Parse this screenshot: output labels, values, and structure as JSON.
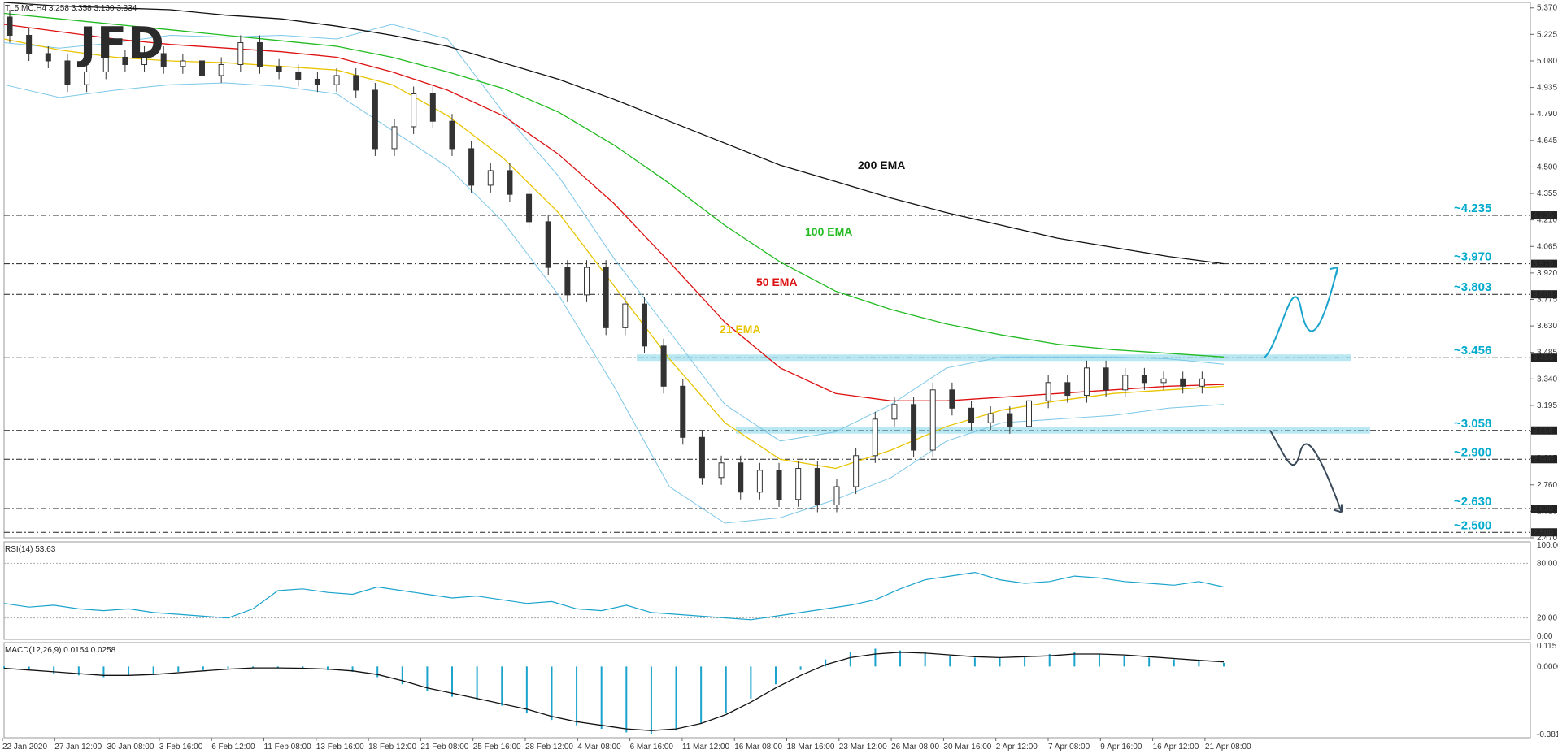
{
  "header": {
    "symbol": "TL5.MC,H4",
    "ohlc": "3.258 3.358 3.130 3.334",
    "logo": "JFD"
  },
  "chart_data": {
    "type": "line",
    "price_ticks": [
      "5.370",
      "5.225",
      "5.080",
      "4.935",
      "4.790",
      "4.645",
      "4.500",
      "4.355",
      "4.210",
      "4.065",
      "3.920",
      "3.775",
      "3.630",
      "3.485",
      "3.340",
      "3.195",
      "3.050",
      "2.905",
      "2.760",
      "2.615",
      "2.470"
    ],
    "price_range": [
      2.47,
      5.4
    ],
    "levels": [
      {
        "value": 4.235,
        "label": "~4.235",
        "tag": "4.235"
      },
      {
        "value": 3.97,
        "label": "~3.970",
        "tag": "3.970"
      },
      {
        "value": 3.803,
        "label": "~3.803",
        "tag": "3.803"
      },
      {
        "value": 3.456,
        "label": "~3.456",
        "tag": "3.456"
      },
      {
        "value": 3.058,
        "label": "~3.058",
        "tag": "3.058"
      },
      {
        "value": 2.9,
        "label": "~2.900",
        "tag": "2.900"
      },
      {
        "value": 2.63,
        "label": "~2.630",
        "tag": "2.630"
      },
      {
        "value": 2.5,
        "label": "~2.500",
        "tag": "2.500"
      }
    ],
    "ema_labels": [
      {
        "text": "200 EMA",
        "color": "#111111"
      },
      {
        "text": "100 EMA",
        "color": "#22bb22"
      },
      {
        "text": "50 EMA",
        "color": "#dd1111"
      },
      {
        "text": "21 EMA",
        "color": "#e8c400"
      }
    ],
    "ema200": [
      5.4,
      5.38,
      5.37,
      5.36,
      5.33,
      5.31,
      5.27,
      5.22,
      5.16,
      5.07,
      4.98,
      4.87,
      4.75,
      4.63,
      4.51,
      4.42,
      4.33,
      4.25,
      4.18,
      4.11,
      4.06,
      4.01,
      3.97
    ],
    "ema100": [
      5.34,
      5.31,
      5.28,
      5.25,
      5.22,
      5.19,
      5.16,
      5.1,
      5.02,
      4.93,
      4.8,
      4.62,
      4.41,
      4.18,
      3.98,
      3.82,
      3.72,
      3.64,
      3.58,
      3.53,
      3.5,
      3.48,
      3.46
    ],
    "ema50": [
      5.28,
      5.24,
      5.2,
      5.17,
      5.15,
      5.13,
      5.1,
      5.02,
      4.92,
      4.78,
      4.57,
      4.3,
      3.98,
      3.65,
      3.4,
      3.26,
      3.22,
      3.22,
      3.24,
      3.26,
      3.28,
      3.3,
      3.31
    ],
    "ema21": [
      5.2,
      5.14,
      5.1,
      5.08,
      5.07,
      5.05,
      5.03,
      4.95,
      4.78,
      4.55,
      4.25,
      3.85,
      3.45,
      3.1,
      2.9,
      2.85,
      2.95,
      3.08,
      3.17,
      3.22,
      3.26,
      3.28,
      3.3
    ],
    "bb_upper": [
      5.18,
      5.15,
      5.18,
      5.22,
      5.21,
      5.22,
      5.2,
      5.28,
      5.2,
      4.8,
      4.45,
      4.0,
      3.6,
      3.2,
      3.0,
      3.05,
      3.2,
      3.4,
      3.46,
      3.46,
      3.46,
      3.45,
      3.42
    ],
    "bb_lower": [
      4.95,
      4.88,
      4.92,
      4.95,
      4.96,
      4.94,
      4.9,
      4.7,
      4.5,
      4.2,
      3.8,
      3.3,
      2.75,
      2.55,
      2.58,
      2.68,
      2.8,
      3.0,
      3.1,
      3.12,
      3.14,
      3.18,
      3.2
    ],
    "candles": [
      {
        "o": 5.32,
        "c": 5.22
      },
      {
        "o": 5.22,
        "c": 5.12
      },
      {
        "o": 5.12,
        "c": 5.08
      },
      {
        "o": 5.08,
        "c": 4.95
      },
      {
        "o": 4.95,
        "c": 5.02
      },
      {
        "o": 5.02,
        "c": 5.1
      },
      {
        "o": 5.1,
        "c": 5.06
      },
      {
        "o": 5.06,
        "c": 5.12
      },
      {
        "o": 5.12,
        "c": 5.05
      },
      {
        "o": 5.05,
        "c": 5.08
      },
      {
        "o": 5.08,
        "c": 5.0
      },
      {
        "o": 5.0,
        "c": 5.06
      },
      {
        "o": 5.06,
        "c": 5.18
      },
      {
        "o": 5.18,
        "c": 5.05
      },
      {
        "o": 5.05,
        "c": 5.02
      },
      {
        "o": 5.02,
        "c": 4.98
      },
      {
        "o": 4.98,
        "c": 4.95
      },
      {
        "o": 4.95,
        "c": 5.0
      },
      {
        "o": 5.0,
        "c": 4.92
      },
      {
        "o": 4.92,
        "c": 4.6
      },
      {
        "o": 4.6,
        "c": 4.72
      },
      {
        "o": 4.72,
        "c": 4.9
      },
      {
        "o": 4.9,
        "c": 4.75
      },
      {
        "o": 4.75,
        "c": 4.6
      },
      {
        "o": 4.6,
        "c": 4.4
      },
      {
        "o": 4.4,
        "c": 4.48
      },
      {
        "o": 4.48,
        "c": 4.35
      },
      {
        "o": 4.35,
        "c": 4.2
      },
      {
        "o": 4.2,
        "c": 3.95
      },
      {
        "o": 3.95,
        "c": 3.8
      },
      {
        "o": 3.8,
        "c": 3.95
      },
      {
        "o": 3.95,
        "c": 3.62
      },
      {
        "o": 3.62,
        "c": 3.75
      },
      {
        "o": 3.75,
        "c": 3.52
      },
      {
        "o": 3.52,
        "c": 3.3
      },
      {
        "o": 3.3,
        "c": 3.02
      },
      {
        "o": 3.02,
        "c": 2.8
      },
      {
        "o": 2.8,
        "c": 2.88
      },
      {
        "o": 2.88,
        "c": 2.72
      },
      {
        "o": 2.72,
        "c": 2.84
      },
      {
        "o": 2.84,
        "c": 2.68
      },
      {
        "o": 2.68,
        "c": 2.85
      },
      {
        "o": 2.85,
        "c": 2.65
      },
      {
        "o": 2.65,
        "c": 2.75
      },
      {
        "o": 2.75,
        "c": 2.92
      },
      {
        "o": 2.92,
        "c": 3.12
      },
      {
        "o": 3.12,
        "c": 3.2
      },
      {
        "o": 3.2,
        "c": 2.95
      },
      {
        "o": 2.95,
        "c": 3.28
      },
      {
        "o": 3.28,
        "c": 3.18
      },
      {
        "o": 3.18,
        "c": 3.1
      },
      {
        "o": 3.1,
        "c": 3.15
      },
      {
        "o": 3.15,
        "c": 3.08
      },
      {
        "o": 3.08,
        "c": 3.22
      },
      {
        "o": 3.22,
        "c": 3.32
      },
      {
        "o": 3.32,
        "c": 3.25
      },
      {
        "o": 3.25,
        "c": 3.4
      },
      {
        "o": 3.4,
        "c": 3.28
      },
      {
        "o": 3.28,
        "c": 3.36
      },
      {
        "o": 3.36,
        "c": 3.32
      },
      {
        "o": 3.32,
        "c": 3.34
      },
      {
        "o": 3.34,
        "c": 3.3
      },
      {
        "o": 3.3,
        "c": 3.34
      }
    ],
    "rsi": {
      "label": "RSI(14) 53.63",
      "ticks": [
        "100.00",
        "80.00",
        "20.00",
        "0.00"
      ],
      "levels": [
        80,
        20
      ],
      "values": [
        36,
        32,
        34,
        30,
        28,
        30,
        26,
        24,
        22,
        20,
        30,
        50,
        52,
        48,
        46,
        54,
        50,
        46,
        42,
        44,
        40,
        36,
        38,
        30,
        28,
        34,
        26,
        24,
        22,
        20,
        18,
        22,
        26,
        30,
        34,
        40,
        52,
        62,
        66,
        70,
        62,
        58,
        60,
        66,
        64,
        60,
        58,
        56,
        60,
        54
      ]
    },
    "macd": {
      "label": "MACD(12,26,9) 0.0154 0.0258",
      "ticks": [
        "0.1157",
        "0.0000",
        "-0.3817"
      ],
      "range": [
        -0.3817,
        0.1157
      ],
      "hist": [
        -0.01,
        -0.02,
        -0.04,
        -0.05,
        -0.06,
        -0.05,
        -0.04,
        -0.03,
        -0.02,
        -0.01,
        -0.005,
        -0.01,
        -0.01,
        -0.02,
        -0.03,
        -0.06,
        -0.1,
        -0.14,
        -0.17,
        -0.19,
        -0.22,
        -0.26,
        -0.3,
        -0.33,
        -0.35,
        -0.37,
        -0.38,
        -0.36,
        -0.32,
        -0.26,
        -0.18,
        -0.1,
        -0.02,
        0.04,
        0.08,
        0.1,
        0.09,
        0.08,
        0.06,
        0.05,
        0.05,
        0.06,
        0.07,
        0.08,
        0.07,
        0.06,
        0.05,
        0.04,
        0.03,
        0.02
      ],
      "signal": [
        -0.01,
        -0.02,
        -0.03,
        -0.04,
        -0.05,
        -0.05,
        -0.045,
        -0.035,
        -0.025,
        -0.015,
        -0.008,
        -0.008,
        -0.01,
        -0.015,
        -0.025,
        -0.045,
        -0.08,
        -0.12,
        -0.15,
        -0.18,
        -0.21,
        -0.24,
        -0.28,
        -0.31,
        -0.33,
        -0.35,
        -0.36,
        -0.35,
        -0.32,
        -0.27,
        -0.2,
        -0.12,
        -0.05,
        0.01,
        0.05,
        0.07,
        0.08,
        0.075,
        0.065,
        0.055,
        0.05,
        0.055,
        0.06,
        0.07,
        0.07,
        0.065,
        0.055,
        0.045,
        0.035,
        0.026
      ]
    },
    "x_ticks": [
      "22 Jan 2020",
      "27 Jan 12:00",
      "30 Jan 08:00",
      "3 Feb 16:00",
      "6 Feb 12:00",
      "11 Feb 08:00",
      "13 Feb 16:00",
      "18 Feb 12:00",
      "21 Feb 08:00",
      "25 Feb 16:00",
      "28 Feb 12:00",
      "4 Mar 08:00",
      "6 Mar 16:00",
      "11 Mar 12:00",
      "16 Mar 08:00",
      "18 Mar 16:00",
      "23 Mar 12:00",
      "26 Mar 08:00",
      "30 Mar 16:00",
      "2 Apr 12:00",
      "7 Apr 08:00",
      "9 Apr 16:00",
      "16 Apr 12:00",
      "21 Apr 08:00"
    ],
    "colors": {
      "level_text": "#00aacc",
      "zone": "#7fd6e8",
      "bb": "#7cc7e8",
      "rsi": "#1aa3cc",
      "macd": "#1aa3cc",
      "arrow_up": "#1aa3cc",
      "arrow_down": "#3a4a5a"
    }
  }
}
